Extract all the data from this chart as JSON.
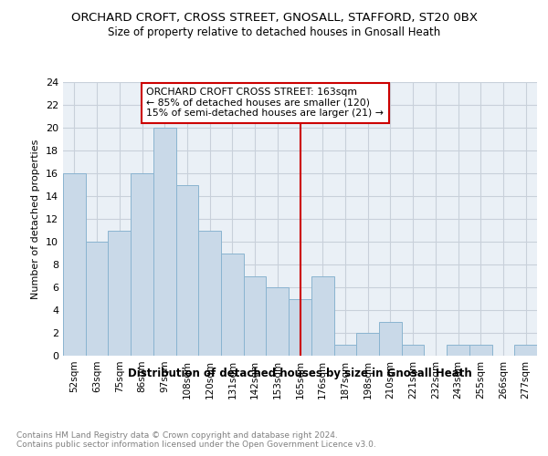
{
  "title": "ORCHARD CROFT, CROSS STREET, GNOSALL, STAFFORD, ST20 0BX",
  "subtitle": "Size of property relative to detached houses in Gnosall Heath",
  "xlabel": "Distribution of detached houses by size in Gnosall Heath",
  "ylabel": "Number of detached properties",
  "footnote": "Contains HM Land Registry data © Crown copyright and database right 2024.\nContains public sector information licensed under the Open Government Licence v3.0.",
  "categories": [
    "52sqm",
    "63sqm",
    "75sqm",
    "86sqm",
    "97sqm",
    "108sqm",
    "120sqm",
    "131sqm",
    "142sqm",
    "153sqm",
    "165sqm",
    "176sqm",
    "187sqm",
    "198sqm",
    "210sqm",
    "221sqm",
    "232sqm",
    "243sqm",
    "255sqm",
    "266sqm",
    "277sqm"
  ],
  "values": [
    16,
    10,
    11,
    16,
    20,
    15,
    11,
    9,
    7,
    6,
    5,
    7,
    1,
    2,
    3,
    1,
    0,
    1,
    1,
    0,
    1
  ],
  "bar_color": "#c9d9e8",
  "bar_edge_color": "#8ab4d0",
  "grid_color": "#c8d0da",
  "background_color": "#eaf0f6",
  "vline_index": 10,
  "vline_color": "#cc0000",
  "annotation_text": "ORCHARD CROFT CROSS STREET: 163sqm\n← 85% of detached houses are smaller (120)\n15% of semi-detached houses are larger (21) →",
  "annotation_box_color": "#ffffff",
  "annotation_box_edge_color": "#cc0000",
  "ylim": [
    0,
    24
  ],
  "yticks": [
    0,
    2,
    4,
    6,
    8,
    10,
    12,
    14,
    16,
    18,
    20,
    22,
    24
  ]
}
